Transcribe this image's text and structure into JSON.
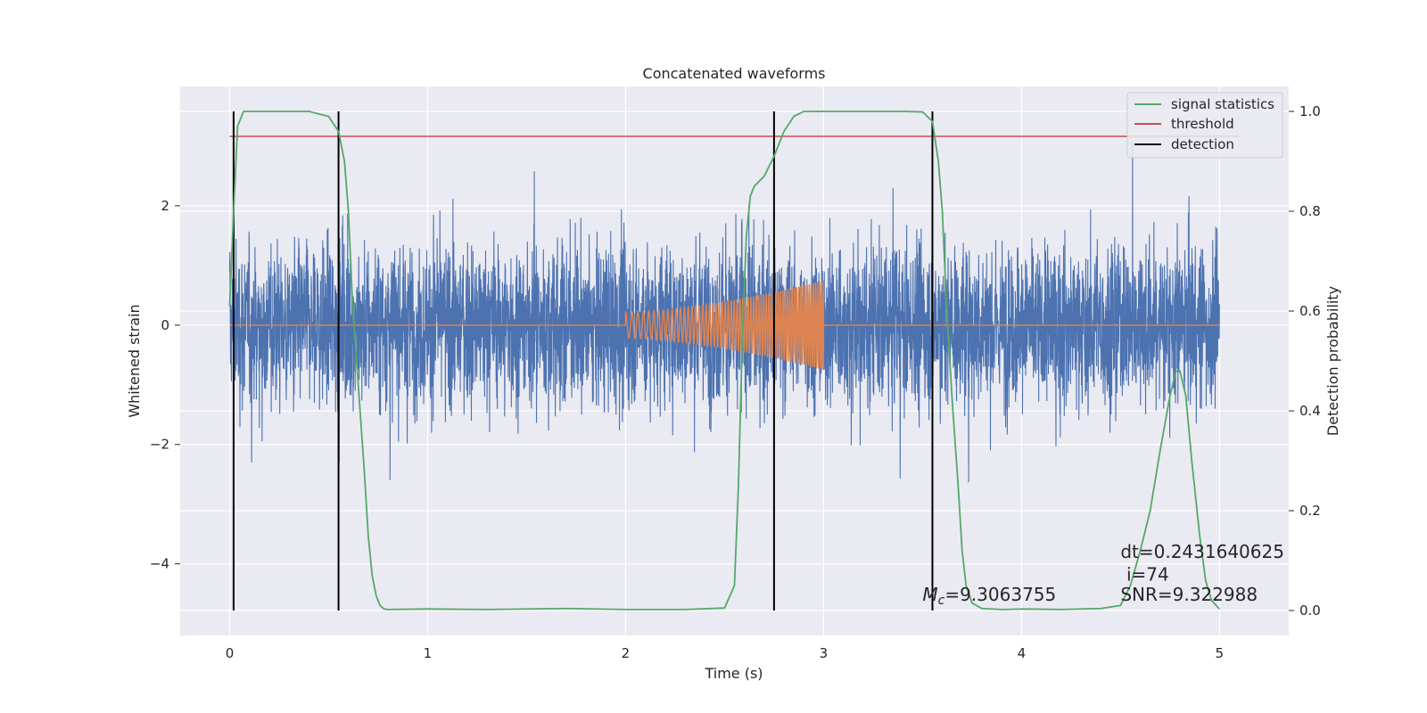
{
  "chart_data": {
    "type": "line",
    "title": "Concatenated waveforms",
    "xlabel": "Time (s)",
    "ylabel_left": "Whitened strain",
    "ylabel_right": "Detection probability",
    "xlim": [
      -0.25,
      5.35
    ],
    "ylim_left": [
      -5.2,
      4.0
    ],
    "ylim_right": [
      -0.05,
      1.05
    ],
    "xticks": [
      0,
      1,
      2,
      3,
      4,
      5
    ],
    "xtick_labels": [
      "0",
      "1",
      "2",
      "3",
      "4",
      "5"
    ],
    "yticks_left": [
      2,
      0,
      -2,
      -4
    ],
    "ytick_labels_left": [
      "2",
      "0",
      "−2",
      "−4"
    ],
    "yticks_right": [
      1.0,
      0.8,
      0.6,
      0.4,
      0.2,
      0.0
    ],
    "ytick_labels_right": [
      "1.0",
      "0.8",
      "0.6",
      "0.4",
      "0.2",
      "0.0"
    ],
    "grid": true,
    "legend_position": "top-right",
    "background": "#eaeaf2",
    "series": [
      {
        "key": "strain",
        "axis": "left",
        "color": "#4c72b0",
        "description_range": [
          -3.3,
          3.6
        ],
        "x_range": [
          0,
          5
        ]
      },
      {
        "key": "template",
        "axis": "left",
        "color": "#dd8452",
        "chirp_start": 2.0,
        "chirp_end": 3.0,
        "amp_start": 0.22,
        "amp_end": 0.75,
        "x_range": [
          0,
          5
        ]
      },
      {
        "key": "statistics",
        "name": "signal statistics",
        "axis": "right",
        "color": "#55a868",
        "x": [
          0.0,
          0.02,
          0.04,
          0.07,
          0.1,
          0.2,
          0.3,
          0.4,
          0.5,
          0.55,
          0.58,
          0.6,
          0.62,
          0.65,
          0.68,
          0.7,
          0.72,
          0.74,
          0.76,
          0.78,
          0.8,
          1.0,
          1.3,
          1.7,
          2.0,
          2.3,
          2.5,
          2.55,
          2.57,
          2.59,
          2.61,
          2.63,
          2.65,
          2.7,
          2.75,
          2.8,
          2.85,
          2.9,
          3.0,
          3.2,
          3.4,
          3.5,
          3.55,
          3.58,
          3.6,
          3.62,
          3.65,
          3.68,
          3.7,
          3.72,
          3.75,
          3.8,
          3.9,
          4.0,
          4.2,
          4.4,
          4.5,
          4.55,
          4.6,
          4.65,
          4.7,
          4.75,
          4.78,
          4.8,
          4.83,
          4.86,
          4.9,
          4.93,
          4.96,
          5.0
        ],
        "y": [
          0.61,
          0.8,
          0.97,
          1.0,
          1.0,
          1.0,
          1.0,
          1.0,
          0.99,
          0.96,
          0.9,
          0.8,
          0.62,
          0.45,
          0.28,
          0.15,
          0.07,
          0.03,
          0.01,
          0.003,
          0.002,
          0.003,
          0.002,
          0.004,
          0.002,
          0.002,
          0.005,
          0.05,
          0.25,
          0.55,
          0.75,
          0.83,
          0.85,
          0.87,
          0.91,
          0.96,
          0.99,
          1.0,
          1.0,
          1.0,
          1.0,
          0.999,
          0.98,
          0.9,
          0.8,
          0.62,
          0.42,
          0.25,
          0.12,
          0.05,
          0.015,
          0.004,
          0.002,
          0.003,
          0.002,
          0.004,
          0.01,
          0.05,
          0.12,
          0.2,
          0.32,
          0.43,
          0.48,
          0.48,
          0.43,
          0.3,
          0.15,
          0.06,
          0.02,
          0.003
        ]
      },
      {
        "key": "threshold",
        "name": "threshold",
        "axis": "right",
        "color": "#c44e52",
        "value": 0.95,
        "x_range": [
          0,
          5.1
        ]
      },
      {
        "key": "detection",
        "name": "detection",
        "axis": "right",
        "color": "#000000",
        "x": [
          0.02,
          0.55,
          2.75,
          3.55
        ],
        "y_range": [
          0.0,
          1.0
        ]
      }
    ],
    "annotations": [
      {
        "key": "mc",
        "symbol": "M",
        "subscript": "c",
        "text": "=9.3063755",
        "x": 3.5,
        "y": 0.02
      },
      {
        "key": "snr",
        "text": "SNR=9.322988",
        "x": 4.5,
        "y": 0.02
      },
      {
        "key": "i",
        "text": "i=74",
        "x": 4.53,
        "y": 0.06
      },
      {
        "key": "dt",
        "text": "dt=0.2431640625",
        "x": 4.5,
        "y": 0.105
      }
    ]
  }
}
